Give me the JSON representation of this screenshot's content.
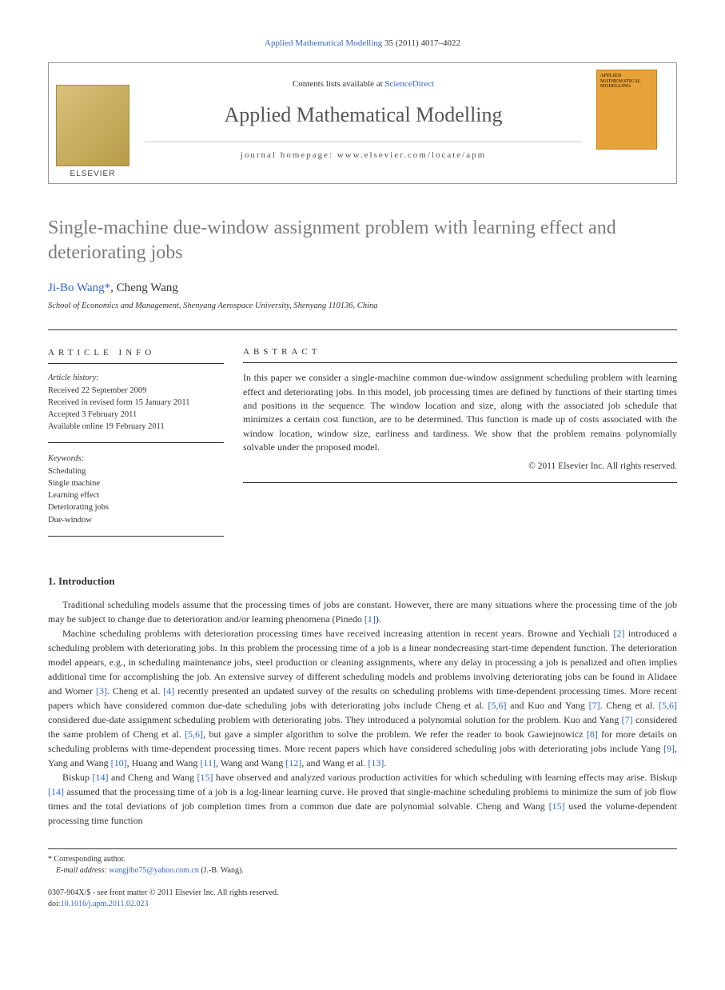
{
  "header": {
    "journal_ref_prefix": "Applied Mathematical Modelling",
    "journal_ref_rest": " 35 (2011) 4017–4022"
  },
  "masthead": {
    "contents_prefix": "Contents lists available at ",
    "contents_link": "ScienceDirect",
    "journal_name": "Applied Mathematical Modelling",
    "homepage_label": "journal homepage: www.elsevier.com/locate/apm",
    "publisher": "ELSEVIER",
    "cover_title": "APPLIED MATHEMATICAL MODELLING"
  },
  "title": "Single-machine due-window assignment problem with learning effect and deteriorating jobs",
  "authors": {
    "a1_name": "Ji-Bo Wang",
    "a1_marker": "*",
    "sep": ", ",
    "a2_name": "Cheng Wang"
  },
  "affiliation": "School of Economics and Management, Shenyang Aerospace University, Shenyang 110136, China",
  "info": {
    "heading": "ARTICLE INFO",
    "history_label": "Article history:",
    "received": "Received 22 September 2009",
    "revised": "Received in revised form 15 January 2011",
    "accepted": "Accepted 3 February 2011",
    "online": "Available online 19 February 2011",
    "keywords_label": "Keywords:",
    "kw1": "Scheduling",
    "kw2": "Single machine",
    "kw3": "Learning effect",
    "kw4": "Deteriorating jobs",
    "kw5": "Due-window"
  },
  "abstract": {
    "heading": "ABSTRACT",
    "text": "In this paper we consider a single-machine common due-window assignment scheduling problem with learning effect and deteriorating jobs. In this model, job processing times are defined by functions of their starting times and positions in the sequence. The window location and size, along with the associated job schedule that minimizes a certain cost function, are to be determined. This function is made up of costs associated with the window location, window size, earliness and tardiness. We show that the problem remains polynomially solvable under the proposed model.",
    "copyright": "© 2011 Elsevier Inc. All rights reserved."
  },
  "section1": {
    "heading": "1. Introduction",
    "p1a": "Traditional scheduling models assume that the processing times of jobs are constant. However, there are many situations where the processing time of the job may be subject to change due to deterioration and/or learning phenomena (Pinedo ",
    "r1": "[1]",
    "p1b": ").",
    "p2a": "Machine scheduling problems with deterioration processing times have received increasing attention in recent years. Browne and Yechiali ",
    "r2": "[2]",
    "p2b": " introduced a scheduling problem with deteriorating jobs. In this problem the processing time of a job is a linear nondecreasing start-time dependent function. The deterioration model appears, e.g., in scheduling maintenance jobs, steel production or cleaning assignments, where any delay in processing a job is penalized and often implies additional time for accomplishing the job. An extensive survey of different scheduling models and problems involving deteriorating jobs can be found in Alidaee and Womer ",
    "r3": "[3]",
    "p2c": ". Cheng et al. ",
    "r4": "[4]",
    "p2d": " recently presented an updated survey of the results on scheduling problems with time-dependent processing times. More recent papers which have considered common due-date scheduling jobs with deteriorating jobs include Cheng et al. ",
    "r56a": "[5,6]",
    "p2e": " and Kuo and Yang ",
    "r7a": "[7]",
    "p2f": ". Cheng et al. ",
    "r56b": "[5,6]",
    "p2g": " considered due-date assignment scheduling problem with deteriorating jobs. They introduced a polynomial solution for the problem. Kuo and Yang ",
    "r7b": "[7]",
    "p2h": " considered the same problem of Cheng et al. ",
    "r56c": "[5,6]",
    "p2i": ", but gave a simpler algorithm to solve the problem. We refer the reader to book Gawiejnowicz ",
    "r8": "[8]",
    "p2j": " for more details on scheduling problems with time-dependent processing times. More recent papers which have considered scheduling jobs with deteriorating jobs include Yang ",
    "r9": "[9]",
    "p2k": ", Yang and Wang ",
    "r10": "[10]",
    "p2l": ", Huang and Wang ",
    "r11": "[11]",
    "p2m": ", Wang and Wang ",
    "r12": "[12]",
    "p2n": ", and Wang et al. ",
    "r13": "[13]",
    "p2o": ".",
    "p3a": "Biskup ",
    "r14a": "[14]",
    "p3b": " and Cheng and Wang ",
    "r15a": "[15]",
    "p3c": " have observed and analyzed various production activities for which scheduling with learning effects may arise. Biskup ",
    "r14b": "[14]",
    "p3d": " assumed that the processing time of a job is a log-linear learning curve. He proved that single-machine scheduling problems to minimize the sum of job flow times and the total deviations of job completion times from a common due date are polynomial solvable. Cheng and Wang ",
    "r15b": "[15]",
    "p3e": " used the volume-dependent processing time function"
  },
  "footnotes": {
    "corr_label": "* Corresponding author.",
    "email_label": "E-mail address: ",
    "email": "wangjibo75@yahoo.com.cn",
    "email_suffix": " (J.-B. Wang)."
  },
  "bottom": {
    "issn_line": "0307-904X/$ - see front matter © 2011 Elsevier Inc. All rights reserved.",
    "doi_label": "doi:",
    "doi": "10.1016/j.apm.2011.02.023"
  },
  "colors": {
    "link": "#3366cc",
    "title_gray": "#7a7a7a",
    "text": "#333333",
    "cover_bg": "#e8a23a"
  }
}
